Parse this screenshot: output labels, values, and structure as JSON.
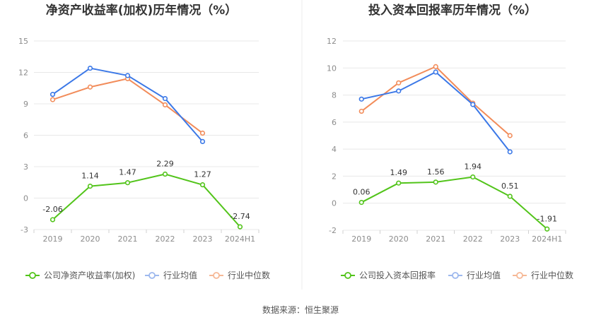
{
  "source": "数据来源：恒生聚源",
  "chart_data": [
    {
      "type": "line",
      "title": "净资产收益率(加权)历年情况（%）",
      "categories": [
        "2019",
        "2020",
        "2021",
        "2022",
        "2023",
        "2024H1"
      ],
      "ylim": [
        -3,
        15
      ],
      "yticks": [
        15,
        12,
        9,
        6,
        3,
        0,
        -3
      ],
      "grid": true,
      "legend_position": "bottom",
      "series": [
        {
          "name": "公司净资产收益率(加权)",
          "color": "#52c41a",
          "values": [
            -2.06,
            1.14,
            1.47,
            2.29,
            1.27,
            -2.74
          ],
          "labels": [
            "-2.06",
            "1.14",
            "1.47",
            "2.29",
            "1.27",
            "-2.74"
          ]
        },
        {
          "name": "行业均值",
          "color": "#3b78e7",
          "values": [
            9.9,
            12.4,
            11.7,
            9.5,
            5.4,
            null
          ]
        },
        {
          "name": "行业中位数",
          "color": "#f28c5a",
          "values": [
            9.4,
            10.6,
            11.4,
            8.9,
            6.2,
            null
          ]
        }
      ]
    },
    {
      "type": "line",
      "title": "投入资本回报率历年情况（%）",
      "categories": [
        "2019",
        "2020",
        "2021",
        "2022",
        "2023",
        "2024H1"
      ],
      "ylim": [
        -2,
        12
      ],
      "yticks": [
        12,
        10,
        8,
        6,
        4,
        2,
        0,
        -2
      ],
      "grid": true,
      "legend_position": "bottom",
      "series": [
        {
          "name": "公司投入资本回报率",
          "color": "#52c41a",
          "values": [
            0.06,
            1.49,
            1.56,
            1.94,
            0.51,
            -1.91
          ],
          "labels": [
            "0.06",
            "1.49",
            "1.56",
            "1.94",
            "0.51",
            "-1.91"
          ]
        },
        {
          "name": "行业均值",
          "color": "#3b78e7",
          "values": [
            7.7,
            8.3,
            9.7,
            7.3,
            3.8,
            null
          ]
        },
        {
          "name": "行业中位数",
          "color": "#f28c5a",
          "values": [
            6.8,
            8.9,
            10.1,
            7.4,
            5.0,
            null
          ]
        }
      ]
    }
  ]
}
